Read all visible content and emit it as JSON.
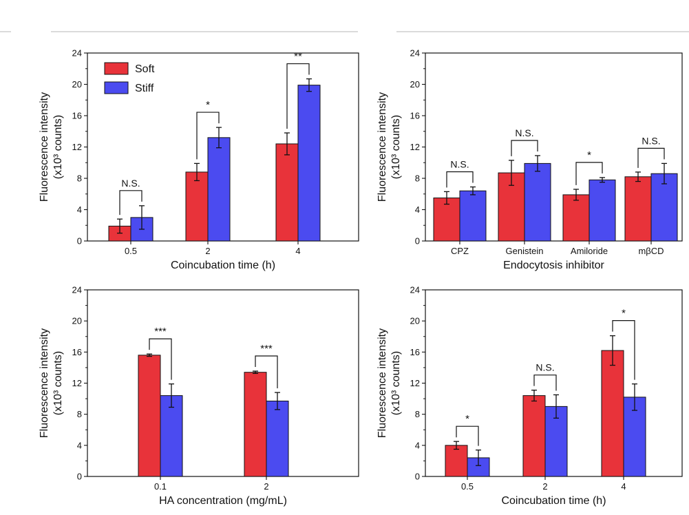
{
  "chart_data": [
    {
      "type": "bar",
      "panel": "top-left",
      "title": "",
      "xlabel": "Coincubation time (h)",
      "ylabel": "Fluorescence intensity",
      "ylabel_unit": "(x10³ counts)",
      "ylim": [
        0,
        24
      ],
      "yticks": [
        0,
        4,
        8,
        12,
        16,
        20,
        24
      ],
      "categories": [
        "0.5",
        "2",
        "4"
      ],
      "series": [
        {
          "name": "Soft",
          "color": "#e8333a",
          "values": [
            1.9,
            8.8,
            12.4
          ],
          "errors": [
            0.9,
            1.1,
            1.4
          ]
        },
        {
          "name": "Stiff",
          "color": "#4b4bf0",
          "values": [
            3.0,
            13.2,
            19.9
          ],
          "errors": [
            1.5,
            1.3,
            0.8
          ]
        }
      ],
      "significance": [
        "N.S.",
        "*",
        "**"
      ],
      "legend": {
        "placement": "top-left",
        "entries": [
          "Soft",
          "Stiff"
        ]
      }
    },
    {
      "type": "bar",
      "panel": "top-right",
      "title": "",
      "xlabel": "Endocytosis inhibitor",
      "ylabel": "Fluorescence intensity",
      "ylabel_unit": "(x10³ counts)",
      "ylim": [
        0,
        24
      ],
      "yticks": [
        0,
        4,
        8,
        12,
        16,
        20,
        24
      ],
      "categories": [
        "CPZ",
        "Genistein",
        "Amiloride",
        "mβCD"
      ],
      "series": [
        {
          "color": "#e8333a",
          "values": [
            5.5,
            8.7,
            5.9,
            8.2
          ],
          "errors": [
            0.8,
            1.6,
            0.7,
            0.6
          ]
        },
        {
          "color": "#4b4bf0",
          "values": [
            6.4,
            9.9,
            7.8,
            8.6
          ],
          "errors": [
            0.5,
            1.0,
            0.3,
            1.3
          ]
        }
      ],
      "significance": [
        "N.S.",
        "N.S.",
        "*",
        "N.S."
      ]
    },
    {
      "type": "bar",
      "panel": "bottom-left",
      "title": "",
      "xlabel": "HA concentration (mg/mL)",
      "ylabel": "Fluorescence intensity",
      "ylabel_unit": "(x10³ counts)",
      "ylim": [
        0,
        24
      ],
      "yticks": [
        0,
        4,
        8,
        12,
        16,
        20,
        24
      ],
      "categories": [
        "0.1",
        "2"
      ],
      "series": [
        {
          "color": "#e8333a",
          "values": [
            15.6,
            13.4
          ],
          "errors": [
            0.15,
            0.15
          ]
        },
        {
          "color": "#4b4bf0",
          "values": [
            10.4,
            9.7
          ],
          "errors": [
            1.5,
            1.1
          ]
        }
      ],
      "significance": [
        "***",
        "***"
      ]
    },
    {
      "type": "bar",
      "panel": "bottom-right",
      "title": "",
      "xlabel": "Coincubation time (h)",
      "ylabel": "Fluorescence intensity",
      "ylabel_unit": "(x10³ counts)",
      "ylim": [
        0,
        24
      ],
      "yticks": [
        0,
        4,
        8,
        12,
        16,
        20,
        24
      ],
      "categories": [
        "0.5",
        "2",
        "4"
      ],
      "series": [
        {
          "color": "#e8333a",
          "values": [
            4.0,
            10.4,
            16.2
          ],
          "errors": [
            0.5,
            0.7,
            1.9
          ]
        },
        {
          "color": "#4b4bf0",
          "values": [
            2.4,
            9.0,
            10.2
          ],
          "errors": [
            1.0,
            1.5,
            1.7
          ]
        }
      ],
      "significance": [
        "*",
        "N.S.",
        "*"
      ]
    }
  ]
}
